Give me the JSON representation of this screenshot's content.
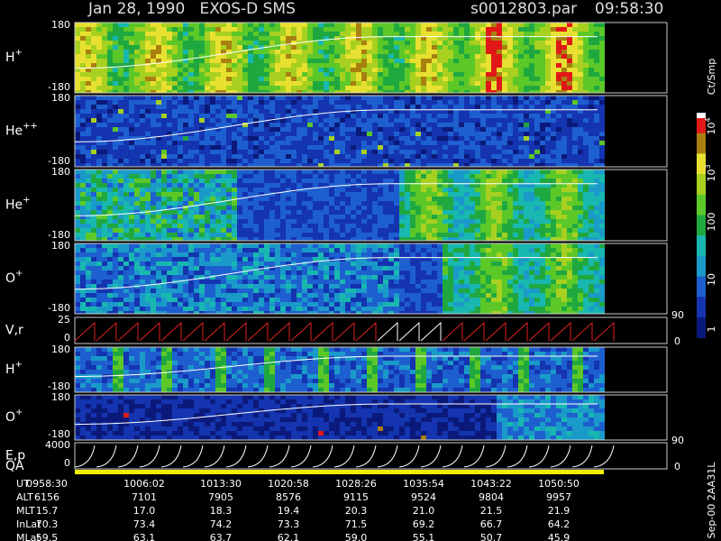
{
  "header": {
    "title": "Jan 28, 1990   EXOS-D SMS",
    "file": "s0012803.par",
    "time": "09:58:30"
  },
  "panels": [
    {
      "name": "H",
      "charge": "+",
      "top": "180",
      "bottom": "-180"
    },
    {
      "name": "He",
      "charge": "++",
      "top": "180",
      "bottom": "-180"
    },
    {
      "name": "He",
      "charge": "+",
      "top": "180",
      "bottom": "-180"
    },
    {
      "name": "O",
      "charge": "+",
      "top": "180",
      "bottom": "-180"
    },
    {
      "name": "V,r",
      "top": "25",
      "bottom": "0",
      "right_top": "90",
      "right_bottom": "0"
    },
    {
      "name": "H",
      "charge": "+",
      "top": "180",
      "bottom": "-180"
    },
    {
      "name": "O",
      "charge": "+",
      "top": "180",
      "bottom": "-180"
    },
    {
      "name": "E,p",
      "top": "4000",
      "bottom": "0",
      "right_top": "90",
      "right_bottom": "0"
    }
  ],
  "qa_label": "QA",
  "colorbar": {
    "title": "Ct/Smp",
    "ticks": [
      {
        "base": "10",
        "exp": "4"
      },
      {
        "base": "10",
        "exp": "3"
      },
      {
        "base": "100"
      },
      {
        "base": "10"
      },
      {
        "base": "1"
      }
    ]
  },
  "footer": [
    {
      "label": "UT",
      "values": [
        "0958:30",
        "1006:02",
        "1013:30",
        "1020:58",
        "1028:26",
        "1035:54",
        "1043:22",
        "1050:50"
      ]
    },
    {
      "label": "ALT",
      "values": [
        "6156",
        "7101",
        "7905",
        "8576",
        "9115",
        "9524",
        "9804",
        "9957"
      ]
    },
    {
      "label": "MLT",
      "values": [
        "15.7",
        "17.0",
        "18.3",
        "19.4",
        "20.3",
        "21.0",
        "21.5",
        "21.9"
      ]
    },
    {
      "label": "InLat",
      "values": [
        "70.3",
        "73.4",
        "74.2",
        "73.3",
        "71.5",
        "69.2",
        "66.7",
        "64.2"
      ]
    },
    {
      "label": "MLat",
      "values": [
        "59.5",
        "63.1",
        "63.7",
        "62.1",
        "59.0",
        "55.1",
        "50.7",
        "45.9"
      ]
    }
  ],
  "side_note": "Sep-00 2AA31L"
}
